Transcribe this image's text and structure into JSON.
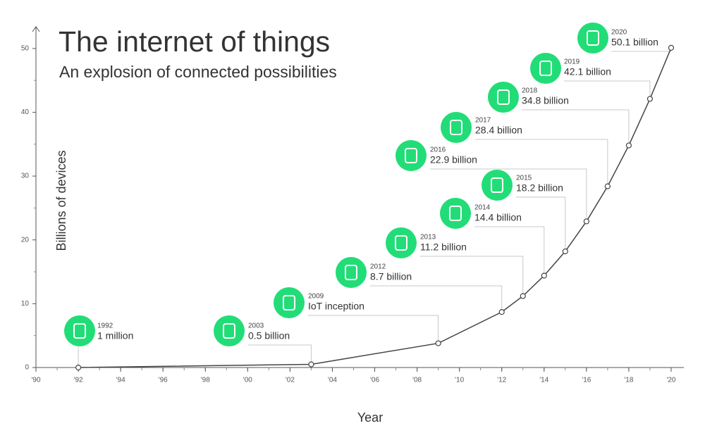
{
  "chart_data": {
    "type": "line",
    "title": "The internet of things",
    "subtitle": "An explosion of connected possibilities",
    "x_label": "Year",
    "y_label": "Billions of devices",
    "x": [
      1992,
      2003,
      2009,
      2012,
      2013,
      2014,
      2015,
      2016,
      2017,
      2018,
      2019,
      2020
    ],
    "values": [
      0.001,
      0.5,
      3.8,
      8.7,
      11.2,
      14.4,
      18.2,
      22.9,
      28.4,
      34.8,
      42.1,
      50.1
    ],
    "value_labels": [
      "1 million",
      "0.5 billion",
      null,
      "8.7 billion",
      "11.2 billion",
      "14.4 billion",
      "18.2 billion",
      "22.9 billion",
      "28.4 billion",
      "34.8 billion",
      "42.1 billion",
      "50.1 billion"
    ],
    "annotations": [
      {
        "x": 2009,
        "text": "IoT inception"
      }
    ],
    "color": "#444444",
    "icon_color": "#22dd77",
    "xlim": [
      1990,
      2020.6
    ],
    "ylim": [
      0,
      53.4
    ],
    "xticks": [
      {
        "value": 1990,
        "label": "'90"
      },
      {
        "value": 1992,
        "label": "'92"
      },
      {
        "value": 1994,
        "label": "'94"
      },
      {
        "value": 1996,
        "label": "'96"
      },
      {
        "value": 1998,
        "label": "'98"
      },
      {
        "value": 2000,
        "label": "'00"
      },
      {
        "value": 2002,
        "label": "'02"
      },
      {
        "value": 2004,
        "label": "'04"
      },
      {
        "value": 2006,
        "label": "'06"
      },
      {
        "value": 2008,
        "label": "'08"
      },
      {
        "value": 2010,
        "label": "'10"
      },
      {
        "value": 2012,
        "label": "'12"
      },
      {
        "value": 2014,
        "label": "'14"
      },
      {
        "value": 2016,
        "label": "'16"
      },
      {
        "value": 2018,
        "label": "'18"
      },
      {
        "value": 2020,
        "label": "'20"
      }
    ],
    "yticks": [
      0,
      10,
      20,
      30,
      40,
      50
    ]
  }
}
